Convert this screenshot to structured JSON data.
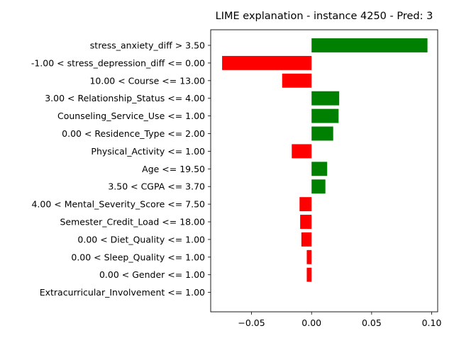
{
  "chart_data": {
    "type": "bar",
    "orientation": "horizontal",
    "title": "LIME explanation - instance 4250 - Pred: 3",
    "xlabel": "",
    "ylabel": "",
    "xlim": [
      -0.084,
      0.105
    ],
    "xticks": [
      -0.05,
      0.0,
      0.05,
      0.1
    ],
    "xtick_labels": [
      "−0.05",
      "0.00",
      "0.05",
      "0.10"
    ],
    "grid": false,
    "positive_color": "#008000",
    "negative_color": "#ff0000",
    "categories": [
      "stress_anxiety_diff > 3.50",
      "-1.00 < stress_depression_diff <= 0.00",
      "10.00 < Course <= 13.00",
      "3.00 < Relationship_Status <= 4.00",
      "Counseling_Service_Use <= 1.00",
      "0.00 < Residence_Type <= 2.00",
      "Physical_Activity <= 1.00",
      "Age <= 19.50",
      "3.50 < CGPA <= 3.70",
      "4.00 < Mental_Severity_Score <= 7.50",
      "Semester_Credit_Load <= 18.00",
      "0.00 < Diet_Quality <= 1.00",
      "0.00 < Sleep_Quality <= 1.00",
      "0.00 < Gender <= 1.00",
      "Extracurricular_Involvement <= 1.00"
    ],
    "values": [
      0.0965,
      -0.0745,
      -0.0245,
      0.023,
      0.0225,
      0.018,
      -0.0165,
      0.013,
      0.0115,
      -0.01,
      -0.0095,
      -0.0085,
      -0.004,
      -0.004,
      0.0
    ]
  }
}
